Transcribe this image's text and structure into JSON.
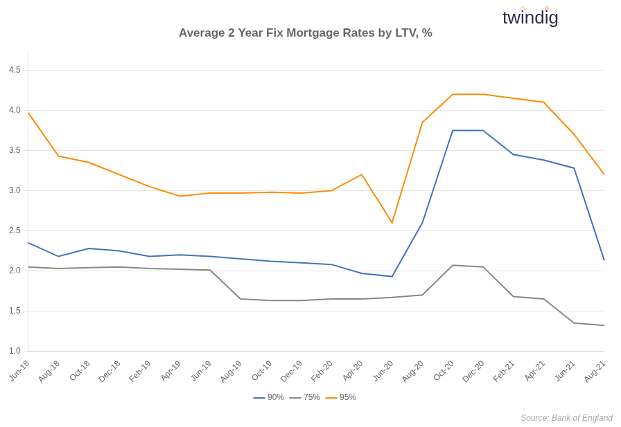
{
  "chart_data": {
    "type": "line",
    "title": "Average 2 Year Fix Mortgage Rates by LTV, %",
    "categories": [
      "Jun-18",
      "Aug-18",
      "Oct-18",
      "Dec-18",
      "Feb-19",
      "Apr-19",
      "Jun-19",
      "Aug-19",
      "Oct-19",
      "Dec-19",
      "Feb-20",
      "Apr-20",
      "Jun-20",
      "Aug-20",
      "Oct-20",
      "Dec-20",
      "Feb-21",
      "Apr-21",
      "Jun-21",
      "Aug-21"
    ],
    "series": [
      {
        "name": "90%",
        "color": "#4472C4",
        "values": [
          2.35,
          2.18,
          2.28,
          2.25,
          2.18,
          2.2,
          2.18,
          2.15,
          2.12,
          2.1,
          2.08,
          1.97,
          1.93,
          2.6,
          3.75,
          3.75,
          3.45,
          3.38,
          3.28,
          2.13
        ]
      },
      {
        "name": "75%",
        "color": "#888888",
        "values": [
          2.05,
          2.03,
          2.04,
          2.05,
          2.03,
          2.02,
          2.01,
          1.65,
          1.63,
          1.63,
          1.65,
          1.65,
          1.67,
          1.7,
          2.07,
          2.05,
          1.68,
          1.65,
          1.35,
          1.32
        ]
      },
      {
        "name": "95%",
        "color": "#FF8C00",
        "values": [
          3.97,
          3.43,
          3.35,
          3.2,
          3.05,
          2.93,
          2.97,
          2.97,
          2.98,
          2.97,
          3.0,
          3.2,
          2.6,
          3.85,
          4.2,
          4.2,
          4.15,
          4.1,
          3.7,
          3.2
        ]
      }
    ],
    "ylim": [
      1.0,
      4.75
    ],
    "yticks": [
      {
        "value": 1.0,
        "label": "1.0"
      },
      1.5,
      {
        "value": 2.0,
        "label": "2.0"
      },
      2.5,
      {
        "value": 3.0,
        "label": "3.0"
      },
      3.5,
      {
        "value": 4.0,
        "label": "4.0"
      },
      4.5
    ],
    "grid": true,
    "legend": "bottom",
    "annotations": [
      {
        "text": "Source: Bank of England",
        "color": "#aaaaaa"
      },
      {
        "text": "twindig",
        "color": "#2d2d4e"
      },
      {
        "text": "⌂",
        "color": "#FF8C00"
      },
      {
        "text": "⌂",
        "color": "#e8401c"
      }
    ]
  }
}
